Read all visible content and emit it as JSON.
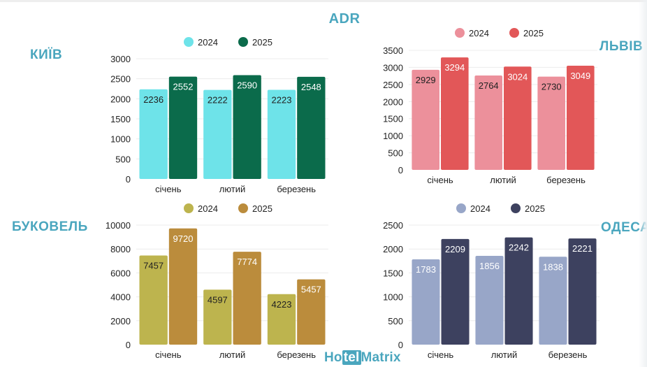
{
  "title": "ADR",
  "brand": {
    "part1": "Ho",
    "part2": "tel",
    "part3": "Matrix"
  },
  "chart_data": [
    {
      "id": "kyiv",
      "city": "КИЇВ",
      "type": "bar",
      "categories": [
        "січень",
        "лютий",
        "березень"
      ],
      "series": [
        {
          "name": "2024",
          "values": [
            2236,
            2222,
            2223
          ],
          "color": "#6ee3e9",
          "label_color": "#222222"
        },
        {
          "name": "2025",
          "values": [
            2552,
            2590,
            2548
          ],
          "color": "#0b6b4b",
          "label_color": "#ffffff"
        }
      ],
      "ylim": [
        0,
        3000
      ],
      "yticks": [
        0,
        500,
        1000,
        1500,
        2000,
        2500,
        3000
      ],
      "legend": "top",
      "grid": true
    },
    {
      "id": "lviv",
      "city": "ЛЬВІВ",
      "type": "bar",
      "categories": [
        "січень",
        "лютий",
        "березень"
      ],
      "series": [
        {
          "name": "2024",
          "values": [
            2929,
            2764,
            2730
          ],
          "color": "#ec909b",
          "label_color": "#222222"
        },
        {
          "name": "2025",
          "values": [
            3294,
            3024,
            3049
          ],
          "color": "#e25758",
          "label_color": "#ffffff"
        }
      ],
      "ylim": [
        0,
        3500
      ],
      "yticks": [
        0,
        500,
        1000,
        1500,
        2000,
        2500,
        3000,
        3500
      ],
      "legend": "top",
      "grid": true
    },
    {
      "id": "bukovel",
      "city": "БУКОВЕЛЬ",
      "type": "bar",
      "categories": [
        "січень",
        "лютий",
        "березень"
      ],
      "series": [
        {
          "name": "2024",
          "values": [
            7457,
            4597,
            4223
          ],
          "color": "#bdb44e",
          "label_color": "#222222"
        },
        {
          "name": "2025",
          "values": [
            9720,
            7774,
            5457
          ],
          "color": "#bb8c3c",
          "label_color": "#ffffff"
        }
      ],
      "ylim": [
        0,
        10000
      ],
      "yticks": [
        0,
        2000,
        4000,
        6000,
        8000,
        10000
      ],
      "legend": "top",
      "grid": true
    },
    {
      "id": "odesa",
      "city": "ОДЕСА",
      "type": "bar",
      "categories": [
        "січень",
        "лютий",
        "березень"
      ],
      "series": [
        {
          "name": "2024",
          "values": [
            1783,
            1856,
            1838
          ],
          "color": "#98a6c8",
          "label_color": "#ffffff"
        },
        {
          "name": "2025",
          "values": [
            2209,
            2242,
            2221
          ],
          "color": "#3d415f",
          "label_color": "#ffffff"
        }
      ],
      "ylim": [
        0,
        2500
      ],
      "yticks": [
        0,
        500,
        1000,
        1500,
        2000,
        2500
      ],
      "legend": "top",
      "grid": true
    }
  ]
}
